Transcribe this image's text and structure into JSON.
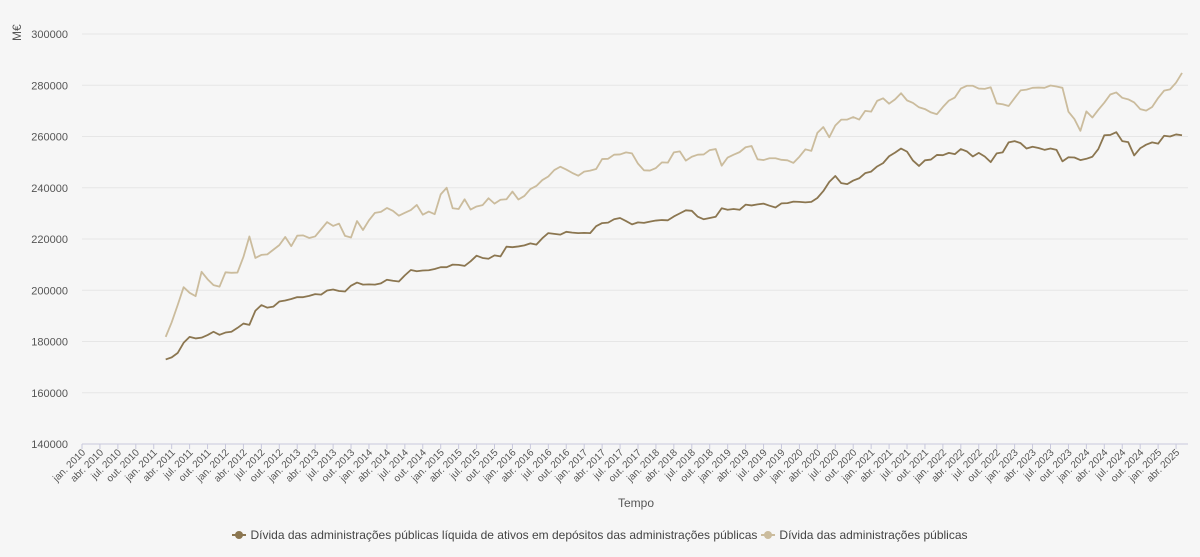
{
  "chart_data": {
    "type": "line",
    "ylabel": "M€",
    "xlabel": "Tempo",
    "ylim": [
      140000,
      300000
    ],
    "yticks": [
      140000,
      160000,
      180000,
      200000,
      220000,
      240000,
      260000,
      280000,
      300000
    ],
    "x_start": "2010-01",
    "x_end": "2025-06",
    "xtick_labels": [
      "jan. 2010",
      "abr. 2010",
      "jul. 2010",
      "out. 2010",
      "jan. 2011",
      "abr. 2011",
      "jul. 2011",
      "out. 2011",
      "jan. 2012",
      "abr. 2012",
      "jul. 2012",
      "out. 2012",
      "jan. 2013",
      "abr. 2013",
      "jul. 2013",
      "out. 2013",
      "jan. 2014",
      "abr. 2014",
      "jul. 2014",
      "out. 2014",
      "jan. 2015",
      "abr. 2015",
      "jul. 2015",
      "out. 2015",
      "jan. 2016",
      "abr. 2016",
      "jul. 2016",
      "out. 2016",
      "jan. 2017",
      "abr. 2017",
      "jul. 2017",
      "out. 2017",
      "jan. 2018",
      "abr. 2018",
      "jul. 2018",
      "out. 2018",
      "jan. 2019",
      "abr. 2019",
      "jul. 2019",
      "out. 2019",
      "jan. 2020",
      "abr. 2020",
      "jul. 2020",
      "out. 2020",
      "jan. 2021",
      "abr. 2021",
      "jul. 2021",
      "out. 2021",
      "jan. 2022",
      "abr. 2022",
      "jul. 2022",
      "out. 2022",
      "jan. 2023",
      "abr. 2023",
      "jul. 2023",
      "out. 2023",
      "jan. 2024",
      "abr. 2024",
      "jul. 2024",
      "out. 2024",
      "jan. 2025",
      "abr. 2025"
    ],
    "grid": true,
    "legend_position": "bottom",
    "series": [
      {
        "name": "Dívida das administrações públicas líquida de ativos em depósitos das administrações públicas",
        "color": "#8b7650",
        "start": "2011-03",
        "values": [
          173000,
          173800,
          175500,
          179500,
          181800,
          181200,
          181500,
          182500,
          183800,
          182600,
          183500,
          183800,
          185300,
          187000,
          186500,
          192000,
          194200,
          193200,
          193600,
          195600,
          196000,
          196600,
          197300,
          197300,
          197800,
          198500,
          198300,
          199900,
          200300,
          199700,
          199500,
          201800,
          203000,
          202200,
          202300,
          202200,
          202700,
          204100,
          203700,
          203400,
          205800,
          207900,
          207400,
          207700,
          207800,
          208300,
          209000,
          209000,
          210000,
          209900,
          209500,
          211300,
          213500,
          212600,
          212300,
          213600,
          213200,
          217000,
          216800,
          217100,
          217500,
          218300,
          217800,
          220300,
          222300,
          222000,
          221700,
          222800,
          222500,
          222300,
          222400,
          222300,
          225000,
          226200,
          226400,
          227700,
          228200,
          227000,
          225700,
          226500,
          226300,
          226800,
          227200,
          227400,
          227300,
          228800,
          230000,
          231200,
          231000,
          228700,
          227700,
          228200,
          228700,
          232000,
          231400,
          231700,
          231400,
          233400,
          233100,
          233500,
          233800,
          233000,
          232300,
          233900,
          234000,
          234600,
          234500,
          234300,
          234500,
          236000,
          238700,
          242300,
          244600,
          241800,
          241400,
          242800,
          243700,
          245700,
          246300,
          248300,
          249600,
          252300,
          253700,
          255300,
          254100,
          250600,
          248500,
          250700,
          251000,
          252800,
          252700,
          253600,
          253100,
          255100,
          254200,
          252200,
          253600,
          252200,
          250000,
          253400,
          253800,
          257700,
          258200,
          257400,
          255300,
          256000,
          255500,
          254800,
          255300,
          254800,
          250300,
          251900,
          251800,
          250800,
          251300,
          252100,
          255100,
          260500,
          260600,
          261700,
          258200,
          257800,
          252600,
          255400,
          256800,
          257700,
          257200,
          260300,
          260000,
          260800,
          260500
        ]
      },
      {
        "name": "Dívida das administrações públicas",
        "color": "#cbbc9d",
        "start": "2011-03",
        "values": [
          181800,
          187500,
          194200,
          201200,
          199000,
          197700,
          207200,
          204300,
          202000,
          201400,
          207000,
          206800,
          206900,
          213000,
          221000,
          212600,
          213800,
          214000,
          215800,
          217600,
          220800,
          217200,
          221300,
          221400,
          220400,
          221000,
          223800,
          226600,
          225100,
          226000,
          221200,
          220600,
          227000,
          223500,
          227300,
          230200,
          230600,
          232100,
          231000,
          229100,
          230200,
          231300,
          233300,
          229500,
          230700,
          229700,
          237400,
          240000,
          232000,
          231700,
          235500,
          231500,
          232700,
          233200,
          235900,
          233800,
          235300,
          235500,
          238500,
          235400,
          236800,
          239500,
          240700,
          243000,
          244400,
          246900,
          248200,
          247100,
          245800,
          244700,
          246300,
          246700,
          247300,
          251200,
          251300,
          252900,
          253000,
          253800,
          253400,
          249400,
          246800,
          246700,
          247700,
          249900,
          249800,
          253800,
          254200,
          250600,
          252100,
          252900,
          253000,
          254700,
          255100,
          248600,
          251800,
          252900,
          253900,
          255800,
          256300,
          251100,
          250800,
          251500,
          251500,
          250900,
          250700,
          249700,
          252100,
          255000,
          254400,
          261400,
          263700,
          259700,
          264300,
          266600,
          266600,
          267600,
          266600,
          270000,
          269700,
          273900,
          274900,
          272800,
          274500,
          276900,
          274100,
          273100,
          271400,
          270700,
          269400,
          268700,
          271500,
          274000,
          275200,
          278700,
          279800,
          279800,
          278700,
          278600,
          279200,
          272900,
          272600,
          271900,
          275000,
          278000,
          278300,
          279000,
          279100,
          279000,
          279900,
          279500,
          279000,
          269700,
          266800,
          262200,
          269800,
          267400,
          270400,
          273200,
          276400,
          277200,
          275100,
          274500,
          273300,
          270700,
          270100,
          271500,
          275000,
          277900,
          278400,
          281000,
          284800
        ]
      }
    ]
  }
}
